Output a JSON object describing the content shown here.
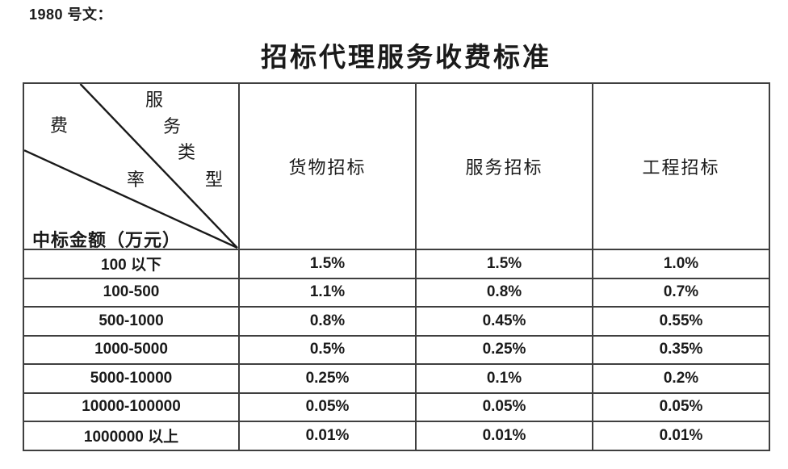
{
  "page": {
    "background": "#ffffff",
    "ref_label": "1980 号文：",
    "title": "招标代理服务收费标准"
  },
  "table": {
    "border_color": "#3f3f3f",
    "text_color": "#1a1a1a",
    "corner": {
      "upper_axis_chars": [
        "服",
        "务",
        "类",
        "型"
      ],
      "middle_axis_chars": [
        "费",
        "率"
      ],
      "bottom_label": "中标金额（万元）"
    },
    "columns": [
      "货物招标",
      "服务招标",
      "工程招标"
    ],
    "rows": [
      {
        "range": "100 以下",
        "values": [
          "1.5%",
          "1.5%",
          "1.0%"
        ]
      },
      {
        "range": "100-500",
        "values": [
          "1.1%",
          "0.8%",
          "0.7%"
        ]
      },
      {
        "range": "500-1000",
        "values": [
          "0.8%",
          "0.45%",
          "0.55%"
        ]
      },
      {
        "range": "1000-5000",
        "values": [
          "0.5%",
          "0.25%",
          "0.35%"
        ]
      },
      {
        "range": "5000-10000",
        "values": [
          "0.25%",
          "0.1%",
          "0.2%"
        ]
      },
      {
        "range": "10000-100000",
        "values": [
          "0.05%",
          "0.05%",
          "0.05%"
        ]
      },
      {
        "range": "1000000 以上",
        "values": [
          "0.01%",
          "0.01%",
          "0.01%"
        ]
      }
    ]
  }
}
